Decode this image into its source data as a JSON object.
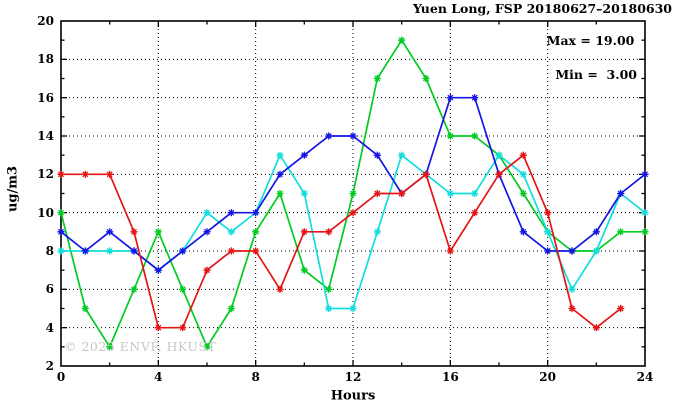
{
  "figure": {
    "kind": "gnuplot-line-chart"
  },
  "chart_data": {
    "type": "line",
    "title": "Yuen Long, FSP 20180627–20180630",
    "xlabel": "Hours",
    "ylabel": "ug/m3",
    "xlim": [
      0,
      24
    ],
    "ylim": [
      2,
      20
    ],
    "x_tick_labels": [
      0,
      4,
      8,
      12,
      16,
      20,
      24
    ],
    "x_minor_tick_step": 2,
    "y_tick_labels": [
      2,
      4,
      6,
      8,
      10,
      12,
      14,
      16,
      18,
      20
    ],
    "y_minor_tick_step": 1,
    "grid": "dotted",
    "legend": "none",
    "annotations": {
      "max": "Max = 19.00",
      "min": "Min =  3.00"
    },
    "watermark": "© 2025 ENVF, HKUST",
    "axis_color": "#000000",
    "background_color": "#ffffff",
    "x_unit_hours": [
      0,
      1,
      2,
      3,
      4,
      5,
      6,
      7,
      8,
      9,
      10,
      11,
      12,
      13,
      14,
      15,
      16,
      17,
      18,
      19,
      20,
      21,
      22,
      23,
      24
    ],
    "series": [
      {
        "name": "series-green",
        "color": "#00cc22",
        "marker": "asterisk",
        "x_start": 0,
        "values": [
          10,
          5,
          3,
          6,
          9,
          6,
          3,
          5,
          9,
          11,
          7,
          6,
          11,
          17,
          19,
          17,
          14,
          14,
          13,
          11,
          9,
          8,
          8,
          9,
          9
        ]
      },
      {
        "name": "series-cyan",
        "color": "#12dede",
        "marker": "asterisk",
        "x_start": 0,
        "values": [
          8,
          8,
          8,
          8,
          7,
          8,
          10,
          9,
          10,
          13,
          11,
          5,
          5,
          9,
          13,
          12,
          11,
          11,
          13,
          12,
          9,
          6,
          8,
          11,
          10
        ]
      },
      {
        "name": "series-blue",
        "color": "#1414e6",
        "marker": "asterisk",
        "x_start": 0,
        "values": [
          9,
          8,
          9,
          8,
          7,
          8,
          9,
          10,
          10,
          12,
          13,
          14,
          14,
          13,
          11,
          12,
          16,
          16,
          12,
          9,
          8,
          8,
          9,
          11,
          12
        ]
      },
      {
        "name": "series-red",
        "color": "#e61414",
        "marker": "asterisk",
        "x_start": 0,
        "values": [
          12,
          12,
          12,
          9,
          4,
          4,
          7,
          8,
          8,
          6,
          9,
          9,
          10,
          11,
          11,
          12,
          8,
          10,
          12,
          13,
          10,
          5,
          4,
          5
        ]
      }
    ]
  }
}
